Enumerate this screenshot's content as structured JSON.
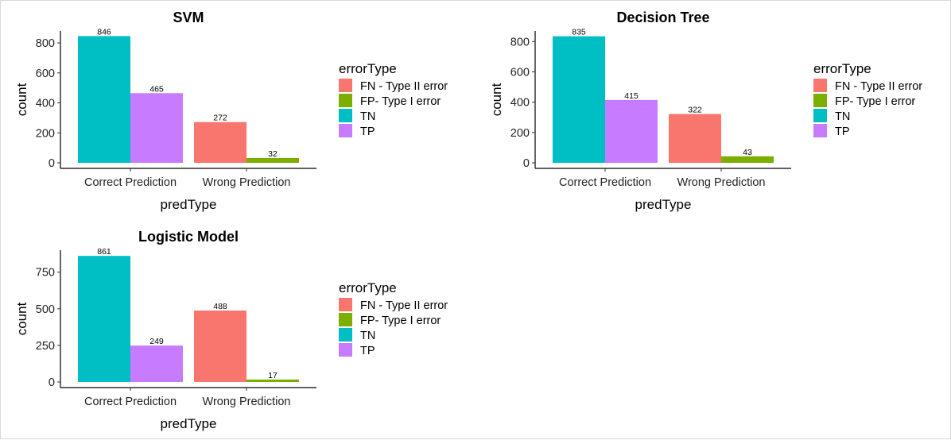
{
  "chart_data": [
    {
      "type": "bar",
      "title": "SVM",
      "xlabel": "predType",
      "ylabel": "count",
      "categories": [
        "Correct Prediction",
        "Wrong Prediction"
      ],
      "yticks": [
        0,
        200,
        400,
        600,
        800
      ],
      "ylim": [
        0,
        880
      ],
      "series": [
        {
          "name": "TN",
          "color": "#00BFC4",
          "category": "Correct Prediction",
          "value": 846
        },
        {
          "name": "TP",
          "color": "#C77CFF",
          "category": "Correct Prediction",
          "value": 465
        },
        {
          "name": "FN - Type II error",
          "color": "#F8766D",
          "category": "Wrong Prediction",
          "value": 272
        },
        {
          "name": "FP- Type I error",
          "color": "#7CAE00",
          "category": "Wrong Prediction",
          "value": 32
        }
      ],
      "legend": {
        "title": "errorType",
        "entries": [
          {
            "label": "FN - Type II error",
            "color": "#F8766D"
          },
          {
            "label": "FP- Type I error",
            "color": "#7CAE00"
          },
          {
            "label": "TN",
            "color": "#00BFC4"
          },
          {
            "label": "TP",
            "color": "#C77CFF"
          }
        ]
      }
    },
    {
      "type": "bar",
      "title": "Decision Tree",
      "xlabel": "predType",
      "ylabel": "count",
      "categories": [
        "Correct Prediction",
        "Wrong Prediction"
      ],
      "yticks": [
        0,
        200,
        400,
        600,
        800
      ],
      "ylim": [
        0,
        870
      ],
      "series": [
        {
          "name": "TN",
          "color": "#00BFC4",
          "category": "Correct Prediction",
          "value": 835
        },
        {
          "name": "TP",
          "color": "#C77CFF",
          "category": "Correct Prediction",
          "value": 415
        },
        {
          "name": "FN - Type II error",
          "color": "#F8766D",
          "category": "Wrong Prediction",
          "value": 322
        },
        {
          "name": "FP- Type I error",
          "color": "#7CAE00",
          "category": "Wrong Prediction",
          "value": 43
        }
      ],
      "legend": {
        "title": "errorType",
        "entries": [
          {
            "label": "FN - Type II error",
            "color": "#F8766D"
          },
          {
            "label": "FP- Type I error",
            "color": "#7CAE00"
          },
          {
            "label": "TN",
            "color": "#00BFC4"
          },
          {
            "label": "TP",
            "color": "#C77CFF"
          }
        ]
      }
    },
    {
      "type": "bar",
      "title": "Logistic Model",
      "xlabel": "predType",
      "ylabel": "count",
      "categories": [
        "Correct Prediction",
        "Wrong Prediction"
      ],
      "yticks": [
        0,
        250,
        500,
        750
      ],
      "ylim": [
        0,
        900
      ],
      "series": [
        {
          "name": "TN",
          "color": "#00BFC4",
          "category": "Correct Prediction",
          "value": 861
        },
        {
          "name": "TP",
          "color": "#C77CFF",
          "category": "Correct Prediction",
          "value": 249
        },
        {
          "name": "FN - Type II error",
          "color": "#F8766D",
          "category": "Wrong Prediction",
          "value": 488
        },
        {
          "name": "FP- Type I error",
          "color": "#7CAE00",
          "category": "Wrong Prediction",
          "value": 17
        }
      ],
      "legend": {
        "title": "errorType",
        "entries": [
          {
            "label": "FN - Type II error",
            "color": "#F8766D"
          },
          {
            "label": "FP- Type I error",
            "color": "#7CAE00"
          },
          {
            "label": "TN",
            "color": "#00BFC4"
          },
          {
            "label": "TP",
            "color": "#C77CFF"
          }
        ]
      }
    }
  ]
}
